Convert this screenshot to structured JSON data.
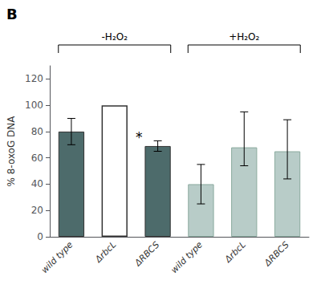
{
  "chart_data": {
    "type": "bar",
    "categories": [
      "wild type",
      "ΔrbcL",
      "ΔRBCS",
      "wild type",
      "ΔrbcL",
      "ΔRBCS"
    ],
    "values": [
      80,
      100,
      69,
      40,
      68,
      65
    ],
    "errors_upper": [
      10,
      0,
      4,
      15,
      27,
      24
    ],
    "errors_lower": [
      10,
      0,
      4,
      15,
      14,
      21
    ],
    "colors": [
      "#4d6b6b",
      "#ffffff",
      "#4d6b6b",
      "#b8ccc8",
      "#b8ccc8",
      "#b8ccc8"
    ],
    "edge_colors": [
      "#333333",
      "#333333",
      "#333333",
      "#8aaa9e",
      "#8aaa9e",
      "#8aaa9e"
    ],
    "ylabel": "% 8-oxoG DNA",
    "ylim": [
      0,
      130
    ],
    "yticks": [
      0,
      20,
      40,
      60,
      80,
      100,
      120
    ],
    "grid": false,
    "panel_label": "B",
    "groups": [
      {
        "label": "-H₂O₂",
        "first": 0,
        "last": 2
      },
      {
        "label": "+H₂O₂",
        "first": 3,
        "last": 5
      }
    ],
    "annotations": [
      {
        "text": "*",
        "index": 2
      }
    ]
  }
}
